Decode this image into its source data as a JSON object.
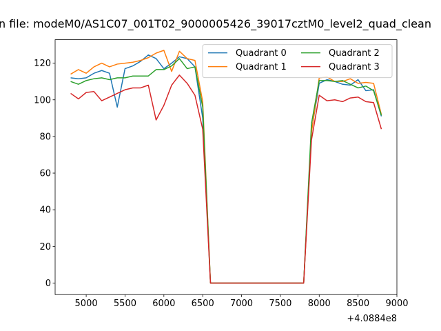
{
  "chart_data": {
    "type": "line",
    "title": "n file: modeM0/AS1C07_001T02_9000005426_39017cztM0_level2_quad_clean",
    "x_offset_label": "+4.0884e8",
    "x": [
      4800,
      4900,
      5000,
      5100,
      5200,
      5300,
      5400,
      5500,
      5600,
      5700,
      5800,
      5900,
      6000,
      6100,
      6200,
      6300,
      6400,
      6500,
      6600,
      6700,
      6800,
      6900,
      7000,
      7100,
      7200,
      7300,
      7400,
      7500,
      7600,
      7700,
      7800,
      7900,
      8000,
      8100,
      8200,
      8300,
      8400,
      8500,
      8600,
      8700,
      8800
    ],
    "series": [
      {
        "name": "Quadrant 0",
        "color": "#1f77b4",
        "values": [
          112,
          111.5,
          112,
          114.5,
          116,
          114.5,
          96,
          117,
          118.5,
          121,
          124.5,
          122.5,
          117,
          120,
          123.5,
          122.5,
          118,
          90,
          0,
          0,
          0,
          0,
          0,
          0,
          0,
          0,
          0,
          0,
          0,
          0,
          0,
          83,
          109,
          111,
          110,
          108.5,
          108,
          111,
          105,
          105.5,
          91
        ]
      },
      {
        "name": "Quadrant 1",
        "color": "#ff7f0e",
        "values": [
          114,
          116.5,
          114.5,
          118,
          120,
          118,
          119.5,
          120,
          120.5,
          121.5,
          123,
          125.5,
          127,
          115.5,
          126.5,
          122.5,
          121.5,
          99,
          0,
          0,
          0,
          0,
          0,
          0,
          0,
          0,
          0,
          0,
          0,
          0,
          0,
          82,
          112,
          112.5,
          110,
          110,
          111.5,
          109,
          109.5,
          109,
          92
        ]
      },
      {
        "name": "Quadrant 2",
        "color": "#2ca02c",
        "values": [
          110,
          108.5,
          110.5,
          111.5,
          112,
          111,
          112,
          112,
          113,
          113,
          113,
          116.5,
          116.5,
          118.5,
          122.5,
          117,
          118,
          96,
          0,
          0,
          0,
          0,
          0,
          0,
          0,
          0,
          0,
          0,
          0,
          0,
          0,
          87,
          110.5,
          110.5,
          110,
          110.5,
          108.5,
          106.5,
          107.5,
          105,
          91.5
        ]
      },
      {
        "name": "Quadrant 3",
        "color": "#d62728",
        "values": [
          103.5,
          100.5,
          104,
          104.5,
          99.5,
          101.5,
          103.5,
          105.5,
          106.5,
          106.5,
          108,
          89,
          97,
          108,
          113.5,
          109,
          102.5,
          84,
          0,
          0,
          0,
          0,
          0,
          0,
          0,
          0,
          0,
          0,
          0,
          0,
          0,
          78,
          102.5,
          99.5,
          100,
          99,
          101,
          101.5,
          99,
          98.5,
          84
        ]
      }
    ],
    "xlim": [
      4600,
      9000
    ],
    "xticks": [
      5000,
      5500,
      6000,
      6500,
      7000,
      7500,
      8000,
      8500,
      9000
    ],
    "ylim": [
      -6.3,
      132.8
    ],
    "yticks": [
      0,
      20,
      40,
      60,
      80,
      100,
      120
    ],
    "legend": "upper right",
    "legend_columns": 2
  }
}
